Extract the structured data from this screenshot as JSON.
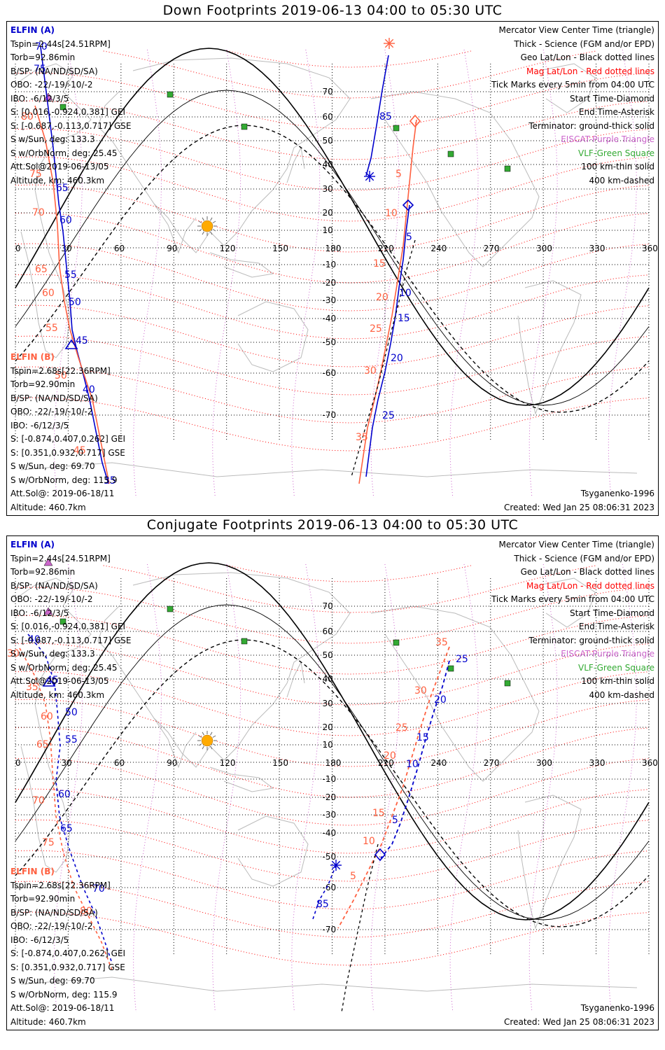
{
  "panels": [
    {
      "title": "Down Footprints 2019-06-13 04:00 to 05:30 UTC",
      "elfin_a": {
        "header": "ELFIN (A)",
        "lines": [
          "Tspin=2.44s[24.51RPM]",
          "Torb=92.86min",
          "B/SP: (NA/ND/SD/SA)",
          "OBO: -22/-19/-10/-2",
          "IBO: -6/12/3/5",
          "S: [0.016,-0.924,0.381] GEI",
          "S: [-0.687,-0.113,0.717] GSE",
          "S w/Sun, deg: 133.3",
          "S w/OrbNorm, deg: 25.45",
          "Att.Sol@2019-06-13/05",
          "Altitude, km: 460.3km"
        ]
      },
      "elfin_b": {
        "header": "ELFIN (B)",
        "lines": [
          "Tspin=2.68s[22.36RPM]",
          "Torb=92.90min",
          "B/SP: (NA/ND/SD/SA)",
          "OBO: -22/-19/-10/-2",
          "IBO: -6/12/3/5",
          "S: [-0.874,0.407,0.262] GEI",
          "S: [0.351,0.932,0.717] GSE",
          "S w/Sun, deg: 69.70",
          "S w/OrbNorm, deg: 115.9",
          "Att.Sol@: 2019-06-18/11",
          "Altitude: 460.7km"
        ]
      },
      "legend": [
        {
          "text": "Mercator View Center Time (triangle)",
          "color": "#000000"
        },
        {
          "text": "Thick - Science (FGM and/or EPD)",
          "color": "#000000"
        },
        {
          "text": "Geo Lat/Lon - Black dotted lines",
          "color": "#000000"
        },
        {
          "text": "Mag Lat/Lon - Red dotted lines",
          "color": "#ff0000"
        },
        {
          "text": "Tick Marks every 5min from 04:00 UTC",
          "color": "#000000"
        },
        {
          "text": "Start Time-Diamond",
          "color": "#000000"
        },
        {
          "text": "End Time-Asterisk",
          "color": "#000000"
        },
        {
          "text": "Terminator: ground-thick solid",
          "color": "#000000"
        },
        {
          "text": "EISCAT-Purple Triangle",
          "color": "#cc66cc"
        },
        {
          "text": "VLF-Green Square",
          "color": "#33aa33"
        },
        {
          "text": "100 km-thin solid",
          "color": "#000000"
        },
        {
          "text": "400 km-dashed",
          "color": "#000000"
        }
      ],
      "model": "Tsyganenko-1996",
      "created": "Created: Wed Jan 25 08:06:31 2023",
      "lon_labels": [
        "0",
        "30",
        "60",
        "90",
        "120",
        "150",
        "180",
        "210",
        "240",
        "270",
        "300",
        "330",
        "360"
      ],
      "lat_labels": [
        "70",
        "60",
        "50",
        "40",
        "30",
        "20",
        "10",
        "-10",
        "-20",
        "-30",
        "-40",
        "-50",
        "-60",
        "-70"
      ],
      "track_a_labels": [
        "85",
        "5",
        "10",
        "15",
        "20",
        "25",
        "65",
        "60",
        "55",
        "50",
        "45",
        "40",
        "35",
        "70",
        "75"
      ],
      "track_b_labels": [
        "5",
        "10",
        "15",
        "20",
        "25",
        "30",
        "35",
        "60",
        "65",
        "70",
        "75",
        "55",
        "50",
        "45",
        "80"
      ]
    },
    {
      "title": "Conjugate Footprints 2019-06-13 04:00 to 05:30 UTC",
      "elfin_a": {
        "header": "ELFIN (A)",
        "lines": [
          "Tspin=2.44s[24.51RPM]",
          "Torb=92.86min",
          "B/SP: (NA/ND/SD/SA)",
          "OBO: -22/-19/-10/-2",
          "IBO: -6/12/3/5",
          "S: [0.016,-0.924,0.381] GEI",
          "S: [-0.687,-0.113,0.717] GSE",
          "S w/Sun, deg: 133.3",
          "S w/OrbNorm, deg: 25.45",
          "Att.Sol@2019-06-13/05",
          "Altitude, km: 460.3km"
        ]
      },
      "elfin_b": {
        "header": "ELFIN (B)",
        "lines": [
          "Tspin=2.68s[22.36RPM]",
          "Torb=92.90min",
          "B/SP: (NA/ND/SD/SA)",
          "OBO: -22/-19/-10/-2",
          "IBO: -6/12/3/5",
          "S: [-0.874,0.407,0.262] GEI",
          "S: [0.351,0.932,0.717] GSE",
          "S w/Sun, deg: 69.70",
          "S w/OrbNorm, deg: 115.9",
          "Att.Sol@: 2019-06-18/11",
          "Altitude: 460.7km"
        ]
      },
      "legend": [
        {
          "text": "Mercator View Center Time (triangle)",
          "color": "#000000"
        },
        {
          "text": "Thick - Science (FGM and/or EPD)",
          "color": "#000000"
        },
        {
          "text": "Geo Lat/Lon - Black dotted lines",
          "color": "#000000"
        },
        {
          "text": "Mag Lat/Lon - Red dotted lines",
          "color": "#ff0000"
        },
        {
          "text": "Tick Marks every 5min from 04:00 UTC",
          "color": "#000000"
        },
        {
          "text": "Start Time-Diamond",
          "color": "#000000"
        },
        {
          "text": "End Time-Asterisk",
          "color": "#000000"
        },
        {
          "text": "Terminator: ground-thick solid",
          "color": "#000000"
        },
        {
          "text": "EISCAT-Purple Triangle",
          "color": "#cc66cc"
        },
        {
          "text": "VLF-Green Square",
          "color": "#33aa33"
        },
        {
          "text": "100 km-thin solid",
          "color": "#000000"
        },
        {
          "text": "400 km-dashed",
          "color": "#000000"
        }
      ],
      "model": "Tsyganenko-1996",
      "created": "Created: Wed Jan 25 08:06:31 2023",
      "lon_labels": [
        "0",
        "30",
        "60",
        "90",
        "120",
        "150",
        "180",
        "210",
        "240",
        "270",
        "300",
        "330",
        "360"
      ],
      "lat_labels": [
        "70",
        "60",
        "50",
        "40",
        "30",
        "20",
        "10",
        "-10",
        "-20",
        "-30",
        "-40",
        "-50",
        "-60",
        "-70"
      ],
      "track_a_labels": [
        "25",
        "20",
        "15",
        "10",
        "5",
        "85",
        "40",
        "45",
        "50",
        "55",
        "60",
        "65",
        "70"
      ],
      "track_b_labels": [
        "35",
        "30",
        "25",
        "20",
        "15",
        "10",
        "5",
        "30",
        "35",
        "60",
        "65",
        "70",
        "75",
        "80"
      ]
    }
  ],
  "colors": {
    "elfin_a": "#0000cc",
    "elfin_b": "#ff6040",
    "mag_grid": "#ff0000",
    "geo_grid": "#000000",
    "eiscat": "#cc66cc",
    "vlf": "#33aa33",
    "sun": "#ffaa00",
    "coast": "#bbbbbb"
  }
}
